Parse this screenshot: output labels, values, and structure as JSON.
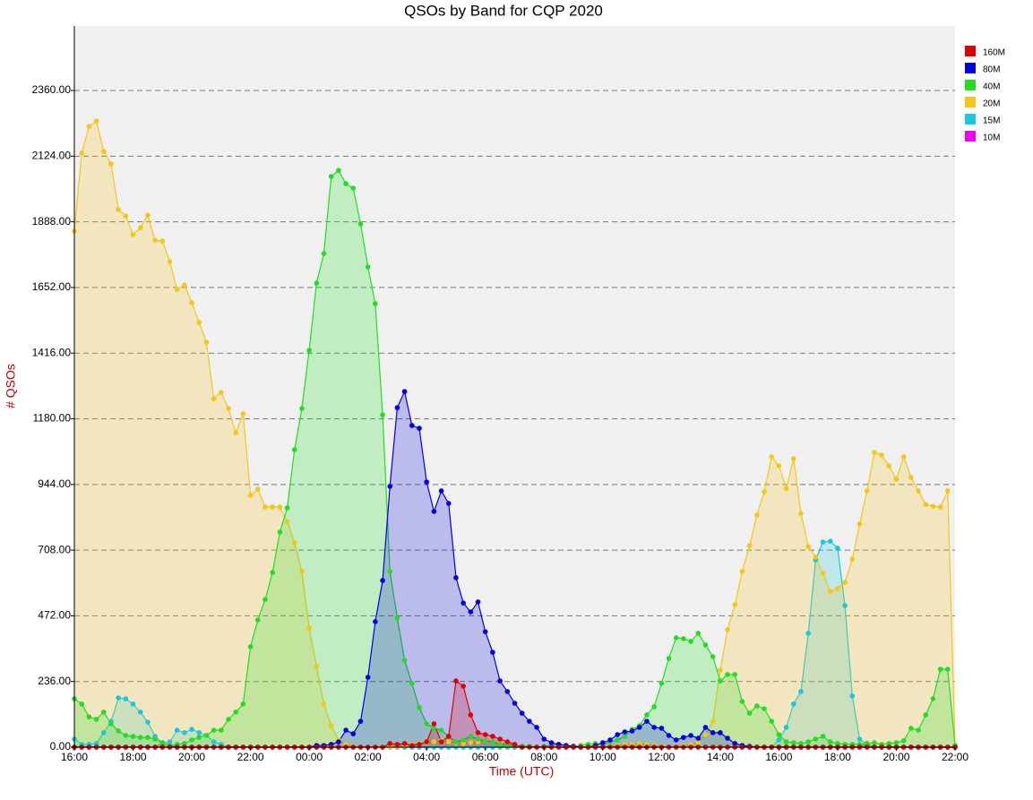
{
  "chart_data": {
    "type": "area",
    "title": "QSOs by Band for CQP 2020",
    "x_label": "Time (UTC)",
    "y_label": "# QSOs",
    "categories": [
      "16:00",
      null,
      null,
      null,
      null,
      null,
      null,
      null,
      "18:00",
      null,
      null,
      null,
      null,
      null,
      null,
      null,
      "20:00",
      null,
      null,
      null,
      null,
      null,
      null,
      null,
      "22:00",
      null,
      null,
      null,
      null,
      null,
      null,
      null,
      "00:00",
      null,
      null,
      null,
      null,
      null,
      null,
      null,
      "02:00",
      null,
      null,
      null,
      null,
      null,
      null,
      null,
      "04:00",
      null,
      null,
      null,
      null,
      null,
      null,
      null,
      "06:00",
      null,
      null,
      null,
      null,
      null,
      null,
      null,
      "08:00",
      null,
      null,
      null,
      null,
      null,
      null,
      null,
      "10:00",
      null,
      null,
      null,
      null,
      null,
      null,
      null,
      "12:00",
      null,
      null,
      null,
      null,
      null,
      null,
      null,
      "14:00",
      null,
      null,
      null,
      null,
      null,
      null,
      null,
      "16:00",
      null,
      null,
      null,
      null,
      null,
      null,
      null,
      "18:00",
      null,
      null,
      null,
      null,
      null,
      null,
      null,
      "20:00",
      null,
      null,
      null,
      null,
      null,
      null,
      null,
      "22:00"
    ],
    "ylim": [
      0,
      2592
    ],
    "yticks": [
      {
        "value": 0,
        "label": "0.00"
      },
      {
        "value": 236,
        "label": "236.00"
      },
      {
        "value": 472,
        "label": "472.00"
      },
      {
        "value": 708,
        "label": "708.00"
      },
      {
        "value": 944,
        "label": "944.00"
      },
      {
        "value": 1180,
        "label": "1180.00"
      },
      {
        "value": 1416,
        "label": "1416.00"
      },
      {
        "value": 1652,
        "label": "1652.00"
      },
      {
        "value": 1888,
        "label": "1888.00"
      },
      {
        "value": 2124,
        "label": "2124.00"
      },
      {
        "value": 2360,
        "label": "2360.00"
      }
    ],
    "grid": true,
    "legend": "top-right",
    "series": [
      {
        "name": "160M",
        "color": "#e00000",
        "values": [
          0,
          0,
          0,
          0,
          0,
          0,
          0,
          0,
          0,
          0,
          0,
          0,
          0,
          0,
          0,
          0,
          0,
          0,
          0,
          0,
          0,
          0,
          0,
          0,
          0,
          0,
          0,
          0,
          0,
          0,
          0,
          0,
          0,
          0,
          0,
          0,
          0,
          0,
          0,
          0,
          0,
          0,
          0,
          13,
          10,
          13,
          6,
          10,
          19,
          84,
          19,
          39,
          238,
          219,
          116,
          52,
          45,
          39,
          29,
          19,
          10,
          0,
          0,
          0,
          0,
          0,
          0,
          0,
          0,
          0,
          0,
          0,
          0,
          0,
          0,
          0,
          0,
          0,
          0,
          0,
          0,
          0,
          0,
          0,
          0,
          0,
          0,
          0,
          0,
          0,
          0,
          0,
          0,
          0,
          0,
          0,
          0,
          0,
          0,
          0,
          0,
          0,
          0,
          0,
          0,
          0,
          0,
          0,
          0,
          0,
          0,
          0,
          0,
          0,
          0,
          0,
          0,
          0,
          0,
          0,
          0
        ]
      },
      {
        "name": "80M",
        "color": "#0000e0",
        "values": [
          0,
          0,
          0,
          0,
          0,
          0,
          0,
          0,
          0,
          0,
          0,
          0,
          0,
          0,
          0,
          0,
          0,
          0,
          0,
          0,
          0,
          0,
          0,
          0,
          0,
          0,
          0,
          0,
          0,
          0,
          0,
          0,
          0,
          6,
          6,
          10,
          19,
          61,
          48,
          93,
          251,
          451,
          599,
          937,
          1220,
          1278,
          1156,
          1146,
          953,
          847,
          921,
          876,
          609,
          518,
          486,
          522,
          415,
          341,
          238,
          200,
          158,
          122,
          93,
          71,
          29,
          16,
          10,
          6,
          3,
          0,
          0,
          6,
          16,
          26,
          45,
          55,
          58,
          71,
          93,
          71,
          68,
          42,
          26,
          35,
          42,
          32,
          71,
          52,
          52,
          32,
          13,
          6,
          3,
          0,
          0,
          0,
          0,
          0,
          0,
          0,
          0,
          0,
          0,
          0,
          0,
          0,
          0,
          0,
          0,
          0,
          0,
          0,
          0,
          0,
          0,
          0,
          0,
          0,
          0,
          0,
          0
        ]
      },
      {
        "name": "40M",
        "color": "#22dd22",
        "values": [
          174,
          155,
          109,
          100,
          126,
          84,
          58,
          42,
          39,
          35,
          35,
          29,
          13,
          6,
          10,
          13,
          26,
          35,
          42,
          61,
          61,
          100,
          126,
          155,
          361,
          457,
          531,
          628,
          773,
          860,
          1069,
          1217,
          1426,
          1668,
          1774,
          2051,
          2073,
          2025,
          2009,
          1880,
          1726,
          1594,
          1194,
          631,
          464,
          312,
          229,
          142,
          84,
          68,
          61,
          39,
          19,
          26,
          39,
          29,
          23,
          19,
          10,
          10,
          6,
          3,
          3,
          0,
          3,
          6,
          10,
          6,
          3,
          6,
          10,
          13,
          10,
          19,
          26,
          39,
          64,
          77,
          116,
          145,
          229,
          319,
          393,
          390,
          380,
          409,
          367,
          325,
          238,
          261,
          261,
          164,
          122,
          148,
          138,
          93,
          45,
          19,
          16,
          13,
          19,
          29,
          39,
          19,
          13,
          10,
          10,
          10,
          13,
          16,
          10,
          13,
          16,
          23,
          68,
          61,
          116,
          174,
          280,
          280,
          6
        ]
      },
      {
        "name": "20M",
        "color": "#f5c518",
        "values": [
          1854,
          2135,
          2231,
          2250,
          2141,
          2096,
          1932,
          1909,
          1842,
          1867,
          1912,
          1822,
          1819,
          1745,
          1645,
          1661,
          1597,
          1526,
          1455,
          1252,
          1275,
          1217,
          1130,
          1198,
          905,
          927,
          863,
          863,
          863,
          811,
          734,
          631,
          428,
          290,
          155,
          77,
          26,
          10,
          3,
          0,
          0,
          0,
          0,
          0,
          3,
          6,
          10,
          13,
          16,
          19,
          23,
          19,
          16,
          13,
          16,
          19,
          23,
          19,
          13,
          10,
          6,
          3,
          0,
          0,
          0,
          0,
          0,
          0,
          0,
          0,
          0,
          0,
          0,
          3,
          6,
          10,
          10,
          13,
          10,
          6,
          3,
          0,
          3,
          6,
          10,
          16,
          45,
          93,
          277,
          422,
          512,
          631,
          724,
          834,
          918,
          1043,
          1011,
          930,
          1037,
          840,
          721,
          683,
          625,
          560,
          570,
          592,
          676,
          802,
          921,
          1059,
          1050,
          1011,
          963,
          1043,
          969,
          921,
          872,
          866,
          863,
          921,
          6
        ]
      },
      {
        "name": "15M",
        "color": "#18c8e0",
        "values": [
          29,
          10,
          10,
          13,
          52,
          93,
          177,
          174,
          155,
          126,
          90,
          39,
          16,
          19,
          61,
          52,
          64,
          52,
          42,
          19,
          10,
          0,
          0,
          0,
          0,
          0,
          0,
          0,
          0,
          0,
          0,
          0,
          0,
          0,
          0,
          0,
          0,
          0,
          0,
          0,
          0,
          0,
          0,
          0,
          0,
          0,
          0,
          0,
          0,
          0,
          0,
          0,
          0,
          0,
          0,
          0,
          0,
          0,
          0,
          0,
          0,
          0,
          0,
          0,
          0,
          0,
          0,
          0,
          0,
          0,
          0,
          0,
          0,
          0,
          0,
          0,
          0,
          0,
          0,
          0,
          0,
          0,
          0,
          0,
          0,
          0,
          0,
          0,
          0,
          0,
          0,
          0,
          0,
          0,
          0,
          0,
          26,
          71,
          155,
          200,
          409,
          673,
          737,
          740,
          715,
          509,
          184,
          29,
          10,
          0,
          0,
          0,
          0,
          0,
          0,
          0,
          0,
          0,
          0,
          0,
          0
        ]
      },
      {
        "name": "10M",
        "color": "#ee00ee",
        "values": [
          0,
          0,
          0,
          0,
          0,
          0,
          0,
          0,
          0,
          0,
          0,
          0,
          16,
          6,
          0,
          0,
          0,
          0,
          0,
          0,
          0,
          0,
          0,
          0,
          0,
          0,
          0,
          0,
          0,
          0,
          0,
          0,
          0,
          0,
          0,
          0,
          0,
          0,
          0,
          0,
          0,
          0,
          0,
          0,
          0,
          0,
          0,
          0,
          0,
          0,
          0,
          0,
          0,
          0,
          0,
          0,
          0,
          0,
          0,
          0,
          0,
          0,
          0,
          0,
          0,
          0,
          0,
          0,
          0,
          0,
          0,
          0,
          0,
          0,
          0,
          0,
          0,
          0,
          0,
          0,
          0,
          0,
          0,
          0,
          0,
          0,
          0,
          0,
          0,
          0,
          0,
          0,
          0,
          0,
          0,
          0,
          0,
          0,
          0,
          0,
          0,
          0,
          0,
          0,
          0,
          0,
          0,
          0,
          13,
          0,
          0,
          0,
          0,
          0,
          0,
          0,
          0,
          0,
          0,
          0,
          0
        ]
      }
    ]
  }
}
